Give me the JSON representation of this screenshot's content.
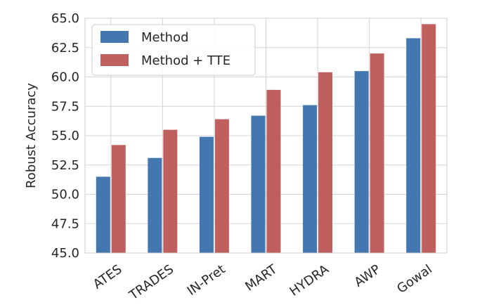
{
  "chart_data": {
    "type": "bar",
    "ylabel": "Robust Accuracy",
    "xlabel": "",
    "categories": [
      "ATES",
      "TRADES",
      "IN-Pret",
      "MART",
      "HYDRA",
      "AWP",
      "Gowal"
    ],
    "series": [
      {
        "name": "Method",
        "color": "#4477b0",
        "values": [
          51.5,
          53.1,
          54.9,
          56.7,
          57.6,
          60.5,
          63.3
        ]
      },
      {
        "name": "Method + TTE",
        "color": "#c0605e",
        "values": [
          54.2,
          55.5,
          56.4,
          58.9,
          60.4,
          62.0,
          64.5
        ]
      }
    ],
    "ylim": [
      45.0,
      65.0
    ],
    "yticks": [
      "45.0",
      "47.5",
      "50.0",
      "52.5",
      "55.0",
      "57.5",
      "60.0",
      "62.5",
      "65.0"
    ],
    "grid": true,
    "legend_position": "top-left"
  }
}
